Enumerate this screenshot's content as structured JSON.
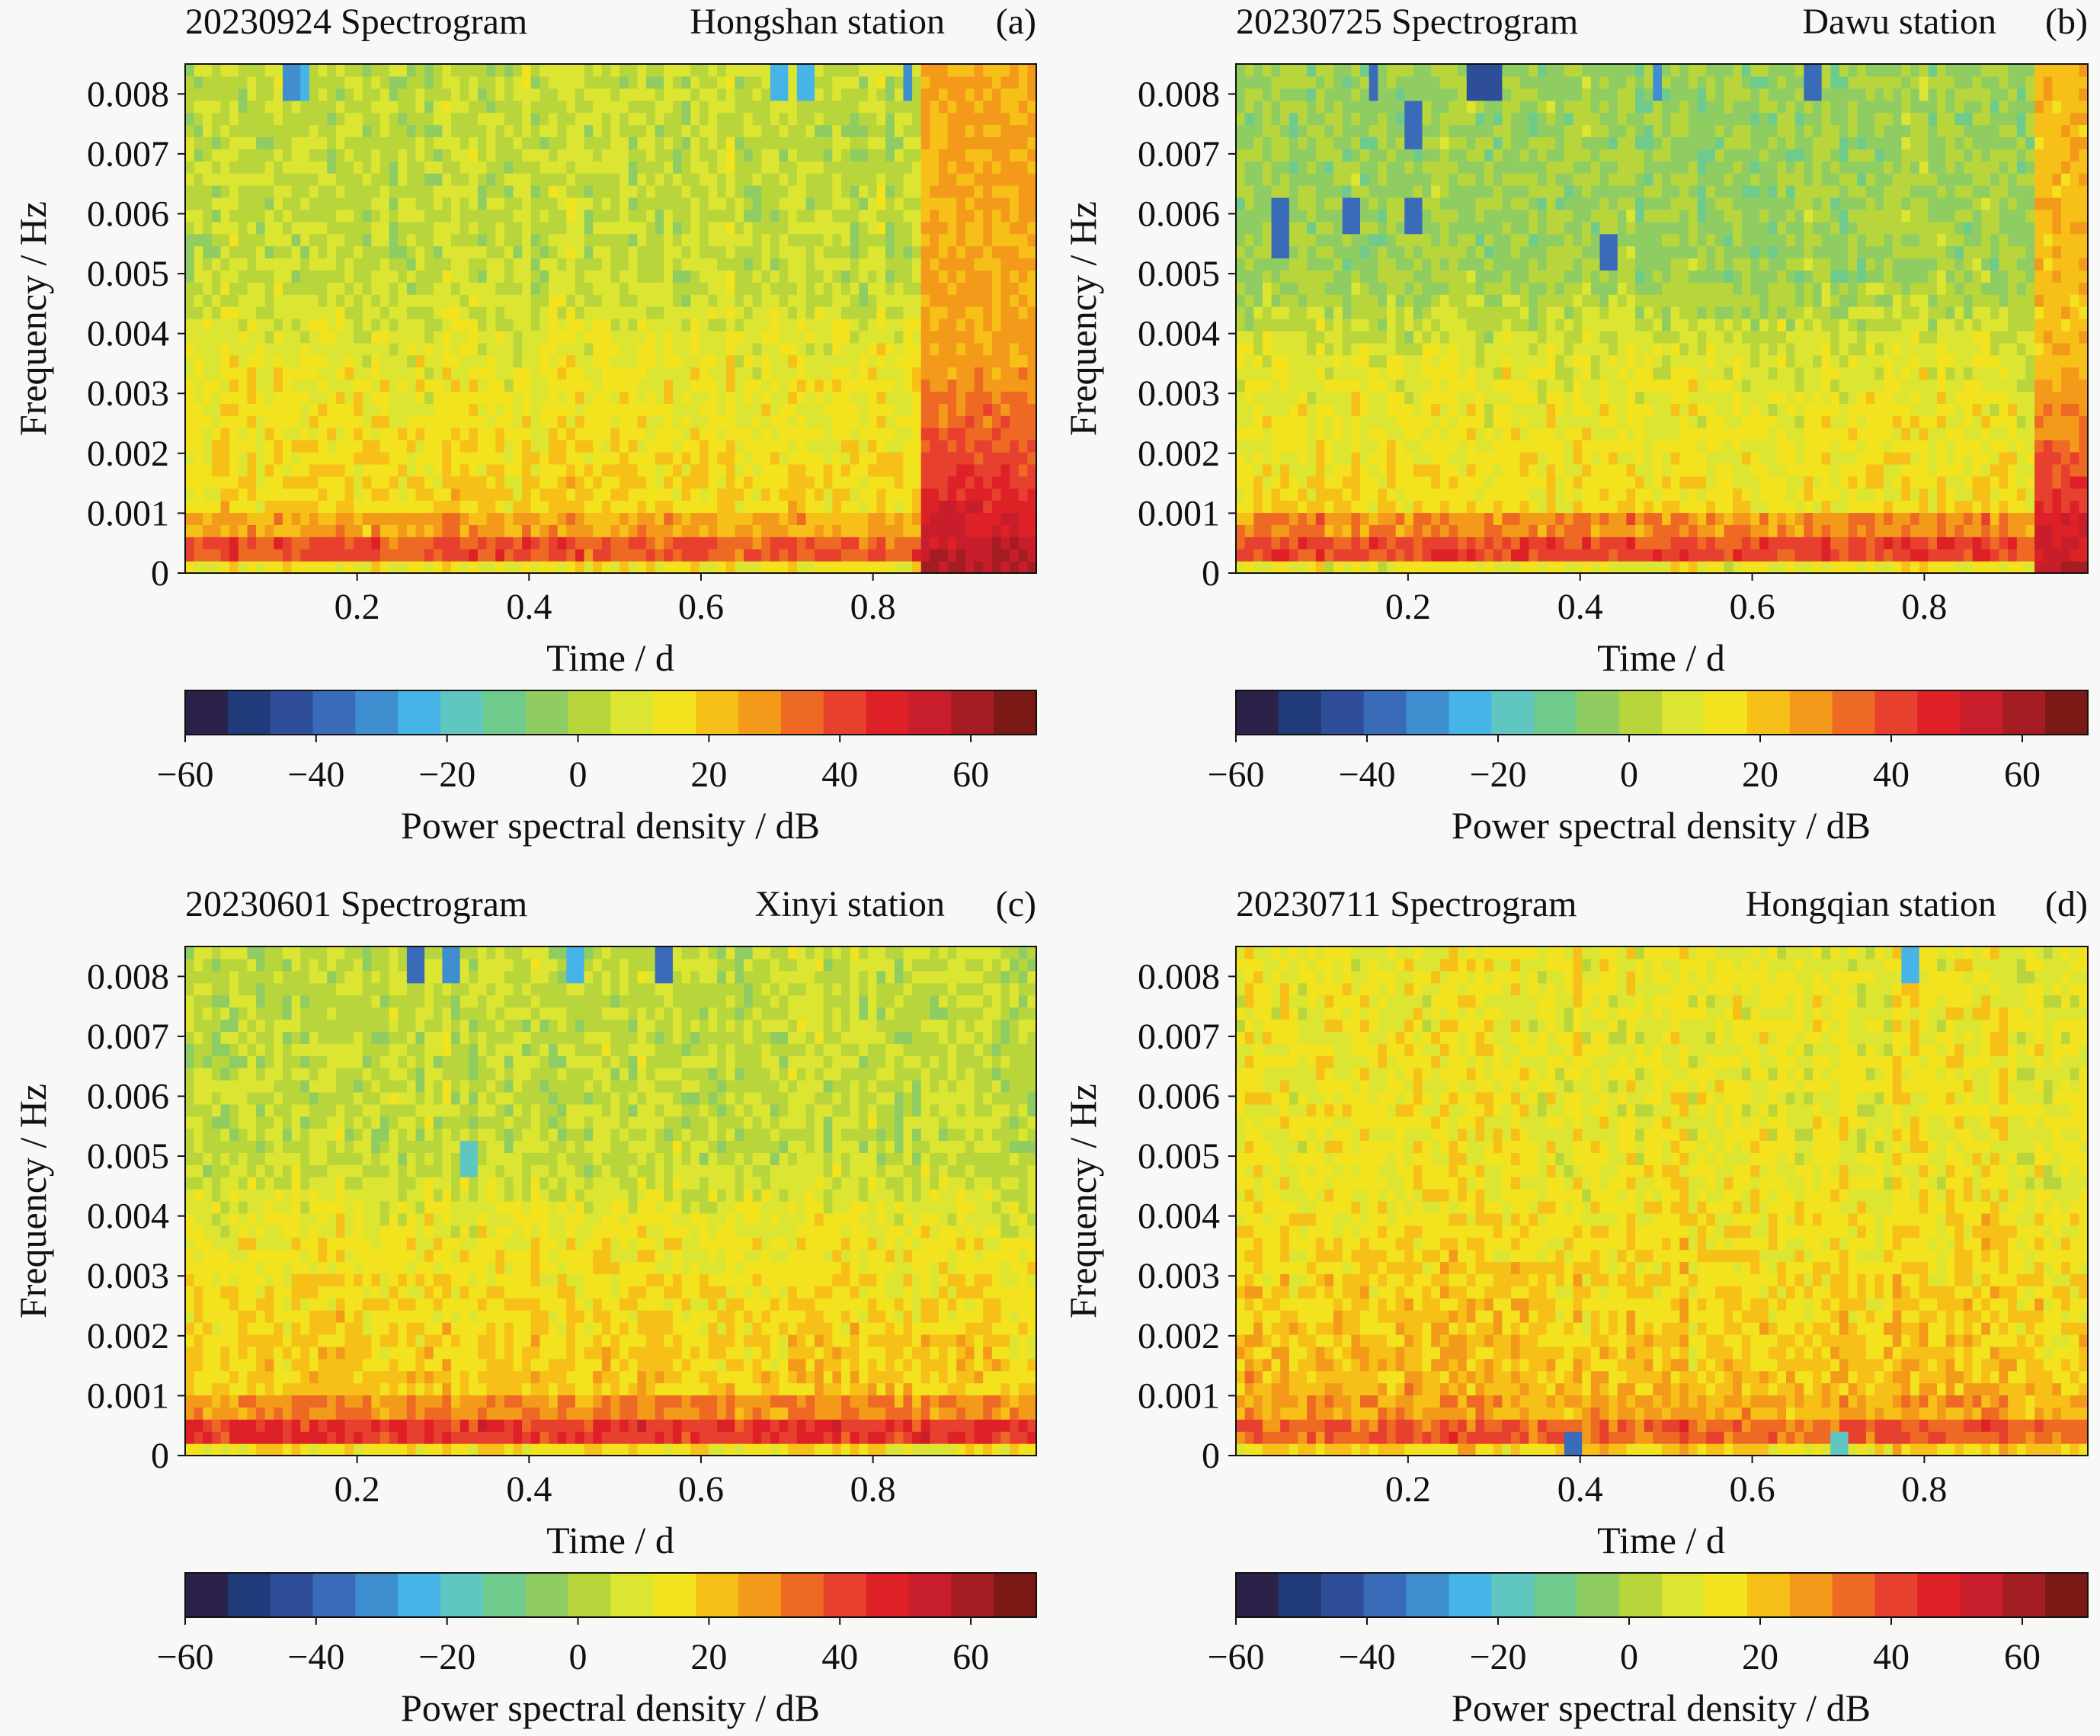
{
  "colors": {
    "background": "#f8f8f6",
    "axis": "#111111",
    "colormap": [
      "#2b2149",
      "#203a7a",
      "#2f4e9a",
      "#3a6bb9",
      "#3f8fd0",
      "#46b4e6",
      "#5fc6c0",
      "#6fcb8c",
      "#8fcd62",
      "#b8d63c",
      "#dce531",
      "#f3e21e",
      "#f7c018",
      "#f39a1a",
      "#ee6a24",
      "#e8402e",
      "#de2027",
      "#c81d2a",
      "#a41d23",
      "#7a1915"
    ]
  },
  "chart_data": [
    {
      "type": "heatmap",
      "panel": "(a)",
      "title": "20230924 Spectrogram",
      "station": "Hongshan station",
      "xlabel": "Time / d",
      "ylabel": "Frequency / Hz",
      "xlim": [
        0,
        0.99
      ],
      "ylim": [
        0,
        0.0085
      ],
      "xticks": [
        0.2,
        0.4,
        0.6,
        0.8
      ],
      "xtick_labels": [
        "0.2",
        "0.4",
        "0.6",
        "0.8"
      ],
      "yticks": [
        0,
        0.001,
        0.002,
        0.003,
        0.004,
        0.005,
        0.006,
        0.007,
        0.008
      ],
      "ytick_labels": [
        "0",
        "0.001",
        "0.002",
        "0.003",
        "0.004",
        "0.005",
        "0.006",
        "0.007",
        "0.008"
      ],
      "colorbar": {
        "label": "Power spectral density / dB",
        "range": [
          -60,
          70
        ],
        "ticks": [
          -60,
          -40,
          -20,
          0,
          20,
          40,
          60
        ],
        "tick_labels": [
          "−60",
          "−40",
          "−20",
          "0",
          "20",
          "40",
          "60"
        ]
      },
      "n_time_bins": 96,
      "n_freq_bins": 42,
      "profile": {
        "low_band_db": 38,
        "band_db": 26,
        "mid_db": 12,
        "high_db": 4,
        "noise_db": 6,
        "seed": 11
      },
      "events": [
        {
          "t0": 0.855,
          "t1": 0.99,
          "peak_db": 58,
          "upper_db": 26
        }
      ],
      "dips": [
        {
          "t": 0.12,
          "f": 0.0082,
          "db": -30
        },
        {
          "t": 0.14,
          "f": 0.0082,
          "db": -25
        },
        {
          "t": 0.69,
          "f": 0.0082,
          "db": -22
        },
        {
          "t": 0.72,
          "f": 0.0082,
          "db": -22
        },
        {
          "t": 0.84,
          "f": 0.0082,
          "db": -28
        }
      ]
    },
    {
      "type": "heatmap",
      "panel": "(b)",
      "title": "20230725 Spectrogram",
      "station": "Dawu station",
      "xlabel": "Time / d",
      "ylabel": "Frequency / Hz",
      "xlim": [
        0,
        0.99
      ],
      "ylim": [
        0,
        0.0085
      ],
      "xticks": [
        0.2,
        0.4,
        0.6,
        0.8
      ],
      "xtick_labels": [
        "0.2",
        "0.4",
        "0.6",
        "0.8"
      ],
      "yticks": [
        0,
        0.001,
        0.002,
        0.003,
        0.004,
        0.005,
        0.006,
        0.007,
        0.008
      ],
      "ytick_labels": [
        "0",
        "0.001",
        "0.002",
        "0.003",
        "0.004",
        "0.005",
        "0.006",
        "0.007",
        "0.008"
      ],
      "colorbar": {
        "label": "Power spectral density / dB",
        "range": [
          -60,
          70
        ],
        "ticks": [
          -60,
          -40,
          -20,
          0,
          20,
          40,
          60
        ],
        "tick_labels": [
          "−60",
          "−40",
          "−20",
          "0",
          "20",
          "40",
          "60"
        ]
      },
      "n_time_bins": 96,
      "n_freq_bins": 42,
      "profile": {
        "low_band_db": 40,
        "band_db": 30,
        "mid_db": 10,
        "high_db": -2,
        "noise_db": 6,
        "seed": 23
      },
      "events": [
        {
          "t0": 0.925,
          "t1": 0.99,
          "peak_db": 56,
          "upper_db": 22
        }
      ],
      "dips": [
        {
          "t": 0.05,
          "f": 0.006,
          "db": -40
        },
        {
          "t": 0.05,
          "f": 0.0055,
          "db": -35
        },
        {
          "t": 0.13,
          "f": 0.0059,
          "db": -35
        },
        {
          "t": 0.21,
          "f": 0.0059,
          "db": -40
        },
        {
          "t": 0.21,
          "f": 0.0075,
          "db": -40
        },
        {
          "t": 0.28,
          "f": 0.0082,
          "db": -45
        },
        {
          "t": 0.3,
          "f": 0.0082,
          "db": -45
        },
        {
          "t": 0.43,
          "f": 0.0054,
          "db": -38
        },
        {
          "t": 0.16,
          "f": 0.0082,
          "db": -40
        },
        {
          "t": 0.67,
          "f": 0.0082,
          "db": -35
        },
        {
          "t": 0.49,
          "f": 0.0082,
          "db": -30
        }
      ]
    },
    {
      "type": "heatmap",
      "panel": "(c)",
      "title": "20230601 Spectrogram",
      "station": "Xinyi station",
      "xlabel": "Time / d",
      "ylabel": "Frequency / Hz",
      "xlim": [
        0,
        0.99
      ],
      "ylim": [
        0,
        0.0085
      ],
      "xticks": [
        0.2,
        0.4,
        0.6,
        0.8
      ],
      "xtick_labels": [
        "0.2",
        "0.4",
        "0.6",
        "0.8"
      ],
      "yticks": [
        0,
        0.001,
        0.002,
        0.003,
        0.004,
        0.005,
        0.006,
        0.007,
        0.008
      ],
      "ytick_labels": [
        "0",
        "0.001",
        "0.002",
        "0.003",
        "0.004",
        "0.005",
        "0.006",
        "0.007",
        "0.008"
      ],
      "colorbar": {
        "label": "Power spectral density / dB",
        "range": [
          -60,
          70
        ],
        "ticks": [
          -60,
          -40,
          -20,
          0,
          20,
          40,
          60
        ],
        "tick_labels": [
          "−60",
          "−40",
          "−20",
          "0",
          "20",
          "40",
          "60"
        ]
      },
      "n_time_bins": 96,
      "n_freq_bins": 42,
      "profile": {
        "low_band_db": 44,
        "band_db": 30,
        "mid_db": 14,
        "high_db": 4,
        "noise_db": 6,
        "seed": 37
      },
      "events": [],
      "dips": [
        {
          "t": 0.27,
          "f": 0.0082,
          "db": -40
        },
        {
          "t": 0.31,
          "f": 0.0082,
          "db": -30
        },
        {
          "t": 0.45,
          "f": 0.0082,
          "db": -25
        },
        {
          "t": 0.56,
          "f": 0.0082,
          "db": -40
        },
        {
          "t": 0.33,
          "f": 0.005,
          "db": -20
        }
      ]
    },
    {
      "type": "heatmap",
      "panel": "(d)",
      "title": "20230711 Spectrogram",
      "station": "Hongqian station",
      "xlabel": "Time / d",
      "ylabel": "Frequency / Hz",
      "xlim": [
        0,
        0.99
      ],
      "ylim": [
        0,
        0.0085
      ],
      "xticks": [
        0.2,
        0.4,
        0.6,
        0.8
      ],
      "xtick_labels": [
        "0.2",
        "0.4",
        "0.6",
        "0.8"
      ],
      "yticks": [
        0,
        0.001,
        0.002,
        0.003,
        0.004,
        0.005,
        0.006,
        0.007,
        0.008
      ],
      "ytick_labels": [
        "0",
        "0.001",
        "0.002",
        "0.003",
        "0.004",
        "0.005",
        "0.006",
        "0.007",
        "0.008"
      ],
      "colorbar": {
        "label": "Power spectral density / dB",
        "range": [
          -60,
          70
        ],
        "ticks": [
          -60,
          -40,
          -20,
          0,
          20,
          40,
          60
        ],
        "tick_labels": [
          "−60",
          "−40",
          "−20",
          "0",
          "20",
          "40",
          "60"
        ]
      },
      "n_time_bins": 96,
      "n_freq_bins": 42,
      "profile": {
        "low_band_db": 36,
        "band_db": 26,
        "mid_db": 16,
        "high_db": 12,
        "noise_db": 7,
        "seed": 51
      },
      "events": [],
      "dips": [
        {
          "t": 0.39,
          "f": 0.0001,
          "db": -35
        },
        {
          "t": 0.78,
          "f": 0.0082,
          "db": -25
        },
        {
          "t": 0.7,
          "f": 0.0001,
          "db": -15
        }
      ]
    }
  ]
}
